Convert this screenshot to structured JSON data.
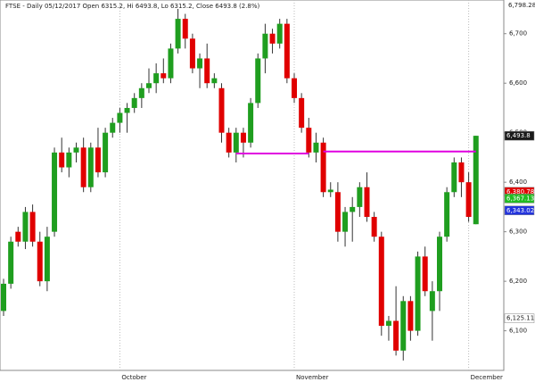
{
  "chart_data": {
    "type": "candlestick",
    "title": "FTSE - Daily 05/12/2017 Open 6315.2, Hi 6493.8, Lo 6315.2, Close 6493.8 (2.8%)",
    "top_label": "6,798.28",
    "categories": [
      null,
      null,
      null,
      null,
      null,
      null,
      null,
      null,
      null,
      null,
      null,
      null,
      null,
      null,
      null,
      null,
      "October",
      null,
      null,
      null,
      null,
      null,
      null,
      null,
      null,
      null,
      null,
      null,
      null,
      null,
      null,
      null,
      null,
      null,
      null,
      null,
      null,
      null,
      null,
      null,
      "November",
      null,
      null,
      null,
      null,
      null,
      null,
      null,
      null,
      null,
      null,
      null,
      null,
      null,
      null,
      null,
      null,
      null,
      null,
      null,
      null,
      null,
      null,
      null,
      "December",
      null
    ],
    "open": [
      6140,
      6195,
      6300,
      6280,
      6340,
      6280,
      6200,
      6300,
      6460,
      6430,
      6460,
      6470,
      6390,
      6470,
      6420,
      6500,
      6520,
      6540,
      6550,
      6570,
      6590,
      6600,
      6620,
      6610,
      6670,
      6730,
      6690,
      6630,
      6650,
      6600,
      6590,
      6500,
      6460,
      6500,
      6480,
      6560,
      6650,
      6700,
      6680,
      6720,
      6610,
      6570,
      6510,
      6460,
      6480,
      6380,
      6380,
      6300,
      6340,
      6350,
      6390,
      6330,
      6290,
      6110,
      6120,
      6060,
      6160,
      6100,
      6250,
      6140,
      6180,
      6290,
      6380,
      6440,
      6400,
      6315.2
    ],
    "high": [
      6205,
      6290,
      6310,
      6350,
      6355,
      6300,
      6310,
      6470,
      6490,
      6470,
      6480,
      6490,
      6480,
      6510,
      6510,
      6530,
      6550,
      6560,
      6580,
      6600,
      6630,
      6640,
      6650,
      6680,
      6750,
      6740,
      6700,
      6660,
      6680,
      6620,
      6600,
      6510,
      6510,
      6510,
      6570,
      6660,
      6720,
      6710,
      6730,
      6730,
      6620,
      6580,
      6530,
      6500,
      6490,
      6400,
      6400,
      6350,
      6370,
      6400,
      6420,
      6340,
      6300,
      6130,
      6190,
      6170,
      6170,
      6260,
      6270,
      6200,
      6300,
      6390,
      6450,
      6450,
      6420,
      6493.8
    ],
    "low": [
      6130,
      6185,
      6270,
      6265,
      6270,
      6190,
      6180,
      6290,
      6420,
      6410,
      6440,
      6380,
      6380,
      6410,
      6410,
      6490,
      6500,
      6500,
      6540,
      6550,
      6580,
      6580,
      6600,
      6600,
      6660,
      6670,
      6620,
      6590,
      6590,
      6590,
      6480,
      6450,
      6440,
      6450,
      6470,
      6550,
      6620,
      6660,
      6670,
      6600,
      6560,
      6500,
      6450,
      6440,
      6370,
      6370,
      6280,
      6270,
      6280,
      6330,
      6320,
      6280,
      6090,
      6080,
      6050,
      6040,
      6080,
      6090,
      6170,
      6080,
      6140,
      6280,
      6370,
      6370,
      6320,
      6315.2
    ],
    "close": [
      6195,
      6280,
      6280,
      6340,
      6280,
      6200,
      6290,
      6460,
      6430,
      6460,
      6470,
      6390,
      6470,
      6420,
      6500,
      6520,
      6540,
      6550,
      6570,
      6590,
      6600,
      6620,
      6610,
      6670,
      6730,
      6690,
      6630,
      6650,
      6600,
      6610,
      6500,
      6460,
      6500,
      6480,
      6560,
      6650,
      6700,
      6680,
      6720,
      6610,
      6570,
      6510,
      6460,
      6480,
      6380,
      6385,
      6300,
      6340,
      6350,
      6390,
      6330,
      6290,
      6110,
      6120,
      6060,
      6160,
      6100,
      6250,
      6180,
      6180,
      6290,
      6380,
      6440,
      6400,
      6330,
      6493.8
    ],
    "up_color": "#1f9e1f",
    "down_color": "#e00000",
    "levels": [
      {
        "value": 6458,
        "color": "#e000e0"
      },
      {
        "value": 6462,
        "color": "#e000e0"
      }
    ],
    "price_labels": [
      {
        "value": 6493.8,
        "label": "6,493.8",
        "color": "#1a1a1a"
      },
      {
        "value": 6380.78,
        "label": "6,380.78",
        "color": "#e00000"
      },
      {
        "value": 6367.13,
        "label": "6,367.13",
        "color": "#22bb22"
      },
      {
        "value": 6343.02,
        "label": "6,343.02",
        "color": "#2233dd"
      },
      {
        "value": 6125.11,
        "label": "6,125.11",
        "color": "#ffffff"
      }
    ],
    "ylim": [
      6020,
      6768
    ],
    "yticks": [
      {
        "value": 6100,
        "label": "6,100"
      },
      {
        "value": 6200,
        "label": "6,200"
      },
      {
        "value": 6300,
        "label": "6,300"
      },
      {
        "value": 6400,
        "label": "6,400"
      },
      {
        "value": 6500,
        "label": "6,500"
      },
      {
        "value": 6600,
        "label": "6,600"
      },
      {
        "value": 6700,
        "label": "6,700"
      }
    ]
  }
}
